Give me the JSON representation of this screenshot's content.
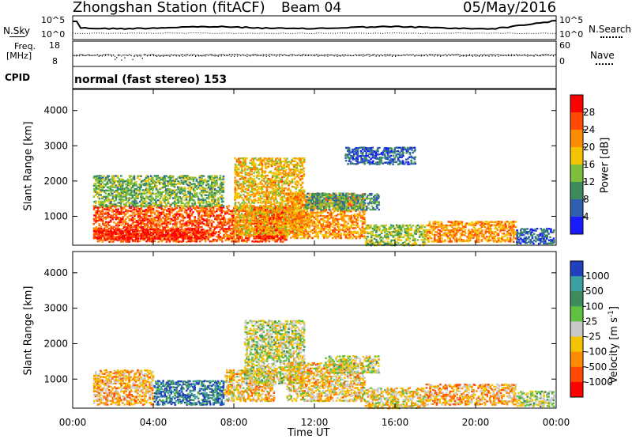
{
  "header": {
    "station": "Zhongshan Station (fitACF)",
    "beam": "Beam 04",
    "date": "05/May/2016"
  },
  "top_panels": {
    "nsky_label": "N.Sky",
    "nsky_ticks": [
      "10^5",
      "10^0"
    ],
    "nsearch_label": "N.Search",
    "nsearch_ticks": [
      "10^5",
      "10^0"
    ],
    "freq_label_1": "Freq.",
    "freq_label_2": "[MHz]",
    "freq_ticks": [
      "18",
      "8"
    ],
    "nave_label": "Nave",
    "nave_ticks": [
      "60",
      "0"
    ],
    "cpid_label": "CPID",
    "cpid_value": "normal (fast stereo) 153"
  },
  "chart_data": [
    {
      "type": "heatmap",
      "title": "",
      "xlabel": "Time UT",
      "ylabel": "Slant Range [km]",
      "x_ticks": [
        "00:00",
        "04:00",
        "08:00",
        "12:00",
        "16:00",
        "20:00",
        "00:00"
      ],
      "xlim_hours": [
        0,
        24
      ],
      "y_ticks": [
        "1000",
        "2000",
        "3000",
        "4000"
      ],
      "ylim": [
        180,
        4600
      ],
      "colorbar": {
        "label": "Power [dB]",
        "ticks": [
          "4",
          "8",
          "12",
          "16",
          "20",
          "24",
          "28"
        ],
        "range": [
          0,
          30
        ],
        "colors": [
          "#1a1aff",
          "#2e5fb0",
          "#3d8c5c",
          "#7bbf3a",
          "#f5c400",
          "#ff8c00",
          "#ff4a00",
          "#ff0000"
        ]
      },
      "echo_regions": [
        {
          "t": [
            1.0,
            10.6
          ],
          "r": [
            300,
            1350
          ],
          "v": 24
        },
        {
          "t": [
            1.0,
            6.5
          ],
          "r": [
            380,
            680
          ],
          "v": 28
        },
        {
          "t": [
            9.0,
            10.6
          ],
          "r": [
            400,
            1300
          ],
          "v": 28
        },
        {
          "t": [
            1.0,
            7.5
          ],
          "r": [
            1300,
            2200
          ],
          "v": 12
        },
        {
          "t": [
            8.0,
            11.5
          ],
          "r": [
            500,
            2700
          ],
          "v": 18
        },
        {
          "t": [
            10.6,
            14.5
          ],
          "r": [
            400,
            1700
          ],
          "v": 20
        },
        {
          "t": [
            11.5,
            15.2
          ],
          "r": [
            1200,
            1700
          ],
          "v": 10
        },
        {
          "t": [
            14.5,
            17.5
          ],
          "r": [
            200,
            800
          ],
          "v": 14
        },
        {
          "t": [
            17.5,
            22.0
          ],
          "r": [
            300,
            900
          ],
          "v": 20
        },
        {
          "t": [
            22.0,
            23.9
          ],
          "r": [
            250,
            700
          ],
          "v": 6
        },
        {
          "t": [
            13.5,
            17.0
          ],
          "r": [
            2500,
            3000
          ],
          "v": 6
        }
      ]
    },
    {
      "type": "heatmap",
      "title": "",
      "xlabel": "Time UT",
      "ylabel": "Slant Range [km]",
      "x_ticks": [
        "00:00",
        "04:00",
        "08:00",
        "12:00",
        "16:00",
        "20:00",
        "00:00"
      ],
      "xlim_hours": [
        0,
        24
      ],
      "y_ticks": [
        "1000",
        "2000",
        "3000",
        "4000"
      ],
      "ylim": [
        180,
        4600
      ],
      "colorbar": {
        "label": "Velocity [m s^-1]",
        "ticks": [
          "1000",
          "500",
          "100",
          "25",
          "-25",
          "-100",
          "-500",
          "-1000"
        ],
        "range": [
          -1000,
          1000
        ],
        "colors": [
          "#2040c0",
          "#3aa0a0",
          "#3d8c5c",
          "#60c040",
          "#c8c8c8",
          "#f5c400",
          "#ff8c00",
          "#ff4a00",
          "#ff0000"
        ]
      },
      "echo_regions": [
        {
          "t": [
            1.0,
            4.0
          ],
          "r": [
            300,
            1300
          ],
          "v": -300
        },
        {
          "t": [
            4.0,
            7.5
          ],
          "r": [
            300,
            1000
          ],
          "v": 700
        },
        {
          "t": [
            7.5,
            10.0
          ],
          "r": [
            400,
            1300
          ],
          "v": -200
        },
        {
          "t": [
            8.5,
            11.5
          ],
          "r": [
            900,
            2700
          ],
          "v": 0
        },
        {
          "t": [
            10.6,
            14.5
          ],
          "r": [
            400,
            1500
          ],
          "v": -200
        },
        {
          "t": [
            12.5,
            15.2
          ],
          "r": [
            1200,
            1700
          ],
          "v": 0
        },
        {
          "t": [
            14.5,
            17.5
          ],
          "r": [
            200,
            800
          ],
          "v": -150
        },
        {
          "t": [
            17.5,
            22.0
          ],
          "r": [
            300,
            900
          ],
          "v": -300
        },
        {
          "t": [
            22.0,
            23.9
          ],
          "r": [
            250,
            700
          ],
          "v": 80
        }
      ]
    }
  ]
}
